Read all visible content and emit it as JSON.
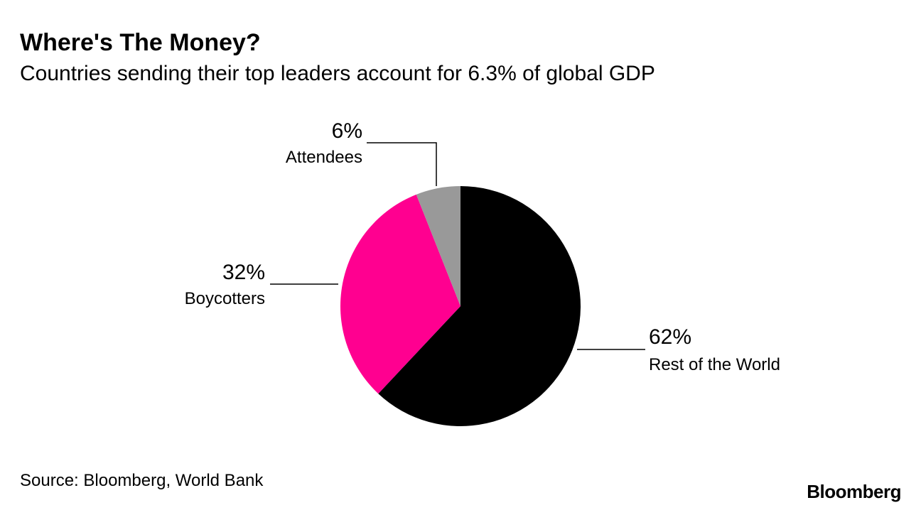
{
  "header": {
    "title": "Where's The Money?",
    "subtitle": "Countries sending their top leaders account for 6.3% of global GDP"
  },
  "chart_data": {
    "type": "pie",
    "slices": [
      {
        "label": "Rest of the World",
        "value": 62,
        "value_label": "62%",
        "color": "#000000"
      },
      {
        "label": "Boycotters",
        "value": 32,
        "value_label": "32%",
        "color": "#ff0090"
      },
      {
        "label": "Attendees",
        "value": 6,
        "value_label": "6%",
        "color": "#999999"
      }
    ],
    "start": "12 o'clock",
    "direction": "clockwise"
  },
  "footer": {
    "source": "Source: Bloomberg, World Bank",
    "brand": "Bloomberg"
  }
}
